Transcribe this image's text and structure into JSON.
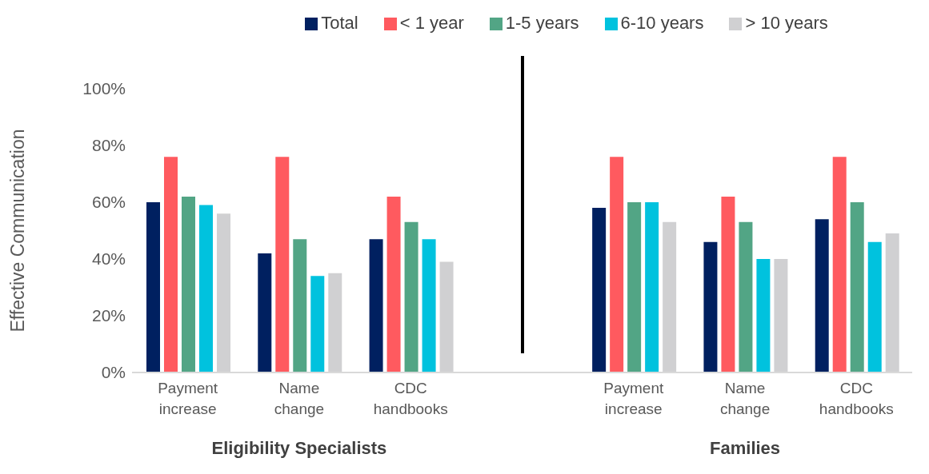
{
  "chart_data": {
    "type": "bar",
    "ylabel": "Effective Communication",
    "categories": [
      "Payment increase",
      "Name change",
      "CDC handbooks",
      null,
      "Payment increase",
      "Name change",
      "CDC handbooks"
    ],
    "series": [
      {
        "name": "Total",
        "color": "#002060",
        "values": [
          60,
          42,
          47,
          null,
          58,
          46,
          54
        ]
      },
      {
        "name": "< 1 year",
        "color": "#ff5a5f",
        "values": [
          76,
          76,
          62,
          null,
          76,
          62,
          76
        ]
      },
      {
        "name": "1-5 years",
        "color": "#52a585",
        "values": [
          62,
          47,
          53,
          null,
          60,
          53,
          60
        ]
      },
      {
        "name": "6-10 years",
        "color": "#00c2de",
        "values": [
          59,
          34,
          47,
          null,
          60,
          40,
          46
        ]
      },
      {
        "name": "> 10 years",
        "color": "#d0d0d2",
        "values": [
          56,
          35,
          39,
          null,
          53,
          40,
          49
        ]
      }
    ],
    "ylim": [
      0,
      100
    ],
    "yticks": [
      {
        "value": 0,
        "label": "0%"
      },
      {
        "value": 20,
        "label": "20%"
      },
      {
        "value": 40,
        "label": "40%"
      },
      {
        "value": 60,
        "label": "60%"
      },
      {
        "value": 80,
        "label": "80%"
      },
      {
        "value": 100,
        "label": "100%"
      }
    ],
    "grid": false,
    "legend": "top",
    "annotations": [
      "Eligibility Specialists",
      "Families"
    ]
  }
}
